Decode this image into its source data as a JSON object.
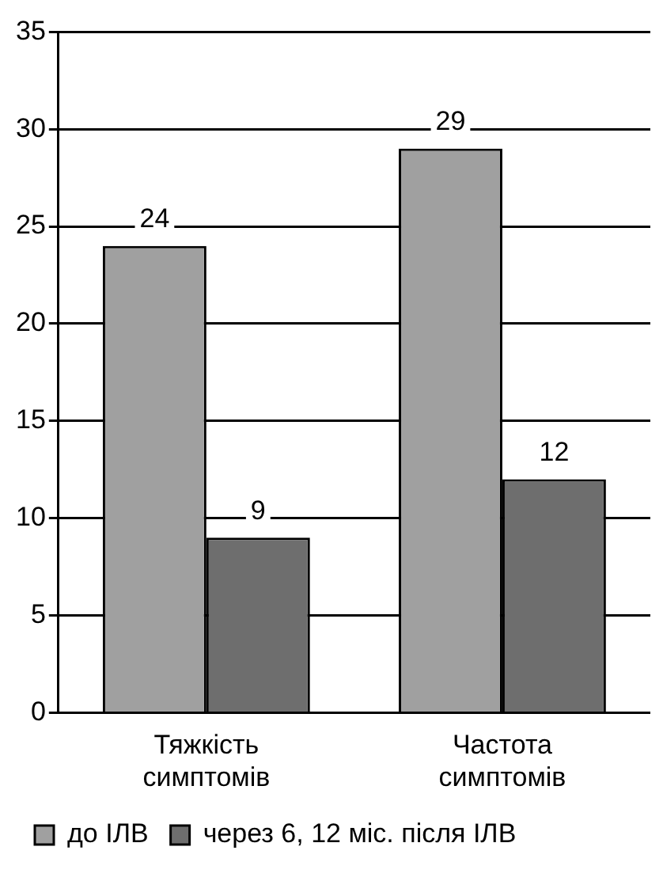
{
  "chart_data": {
    "type": "bar",
    "categories": [
      "Тяжкість симптомів",
      "Частота симптомів"
    ],
    "series": [
      {
        "name": "до ІЛВ",
        "color": "#a0a0a0",
        "values": [
          24,
          29
        ]
      },
      {
        "name": "через 6, 12 міс. після ІЛВ",
        "color": "#6e6e6e",
        "values": [
          9,
          12
        ]
      }
    ],
    "ylim": [
      0,
      35
    ],
    "yticks": [
      0,
      5,
      10,
      15,
      20,
      25,
      30,
      35
    ],
    "grid": "y",
    "legend": "bottom",
    "data_labels": true
  }
}
